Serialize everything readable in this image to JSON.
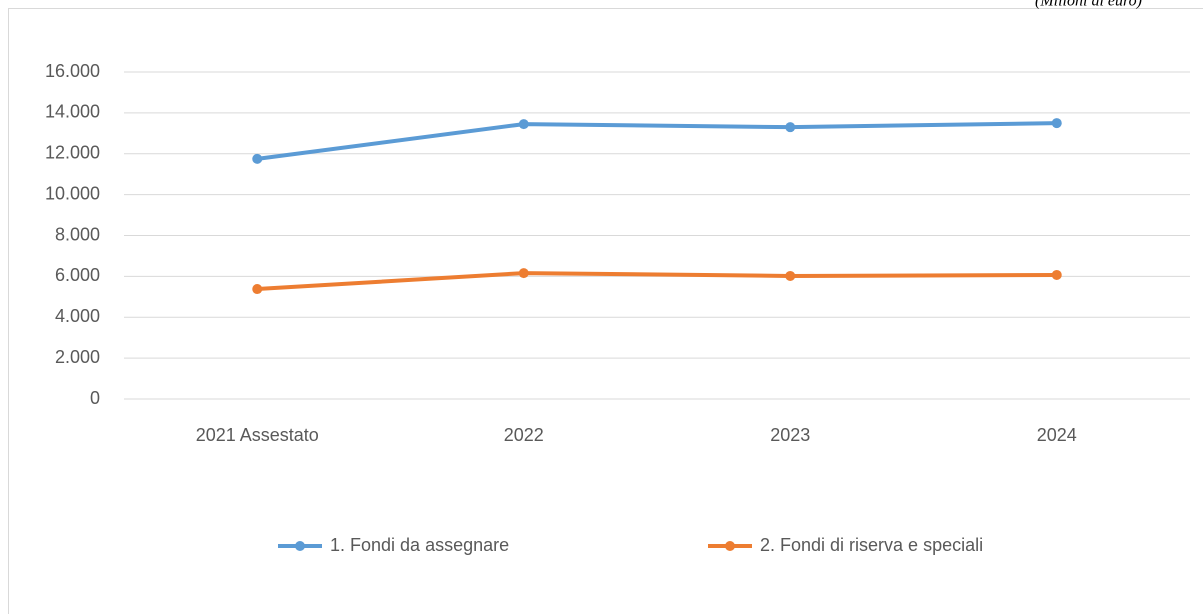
{
  "chart_data": {
    "type": "line",
    "subtitle": "(Milioni di euro)",
    "categories": [
      "2021 Assestato",
      "2022",
      "2023",
      "2024"
    ],
    "series": [
      {
        "name": "1. Fondi da assegnare",
        "color": "#5b9bd5",
        "values": [
          11750,
          13450,
          13300,
          13500
        ]
      },
      {
        "name": "2. Fondi di riserva e speciali",
        "color": "#ed7d31",
        "values": [
          5380,
          6160,
          6020,
          6070
        ]
      }
    ],
    "ylim": [
      0,
      16000
    ],
    "yticks": [
      0,
      {
        "value": 2000,
        "label": "2.000"
      },
      {
        "value": 4000,
        "label": "4.000"
      },
      {
        "value": 6000,
        "label": "6.000"
      },
      {
        "value": 8000,
        "label": "8.000"
      },
      {
        "value": 10000,
        "label": "10.000"
      },
      {
        "value": 12000,
        "label": "12.000"
      },
      {
        "value": 14000,
        "label": "14.000"
      },
      {
        "value": 16000,
        "label": "16.000"
      }
    ],
    "grid": true,
    "legend": "bottom"
  }
}
